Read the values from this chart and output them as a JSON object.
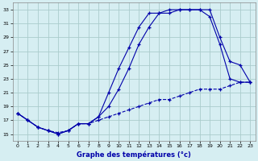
{
  "xlabel": "Graphe des températures (°c)",
  "bg_color": "#d6eef2",
  "grid_color": "#aacccc",
  "line_color": "#0000aa",
  "xlim": [
    -0.5,
    23.5
  ],
  "ylim": [
    14,
    34
  ],
  "yticks": [
    15,
    17,
    19,
    21,
    23,
    25,
    27,
    29,
    31,
    33
  ],
  "xticks": [
    0,
    1,
    2,
    3,
    4,
    5,
    6,
    7,
    8,
    9,
    10,
    11,
    12,
    13,
    14,
    15,
    16,
    17,
    18,
    19,
    20,
    21,
    22,
    23
  ],
  "line1_x": [
    0,
    1,
    2,
    3,
    4,
    5,
    6,
    7,
    8,
    9,
    10,
    11,
    12,
    13,
    14,
    15,
    16,
    17,
    18,
    19,
    20,
    21,
    22,
    23
  ],
  "line1_y": [
    18.0,
    17.0,
    16.0,
    15.5,
    15.0,
    15.5,
    16.5,
    16.5,
    17.5,
    19.0,
    21.5,
    24.5,
    28.0,
    30.5,
    32.5,
    32.5,
    33.0,
    33.0,
    33.0,
    33.0,
    29.0,
    25.5,
    25.0,
    22.5
  ],
  "line2_x": [
    0,
    1,
    2,
    3,
    4,
    5,
    6,
    7,
    8,
    9,
    10,
    11,
    12,
    13,
    14,
    15,
    16,
    17,
    18,
    19,
    20,
    21,
    22,
    23
  ],
  "line2_y": [
    18.0,
    17.0,
    16.0,
    15.5,
    15.0,
    15.5,
    16.5,
    16.5,
    17.5,
    21.0,
    24.5,
    27.5,
    30.5,
    32.5,
    32.5,
    33.0,
    33.0,
    33.0,
    33.0,
    32.0,
    28.0,
    23.0,
    22.5,
    22.5
  ],
  "line3_x": [
    0,
    1,
    2,
    3,
    4,
    5,
    6,
    7,
    8,
    9,
    10,
    11,
    12,
    13,
    14,
    15,
    16,
    17,
    18,
    19,
    20,
    21,
    22,
    23
  ],
  "line3_y": [
    18.0,
    17.0,
    16.0,
    15.5,
    15.2,
    15.5,
    16.5,
    16.5,
    17.0,
    17.5,
    18.0,
    18.5,
    19.0,
    19.5,
    20.0,
    20.0,
    20.5,
    21.0,
    21.5,
    21.5,
    21.5,
    22.0,
    22.5,
    22.5
  ]
}
